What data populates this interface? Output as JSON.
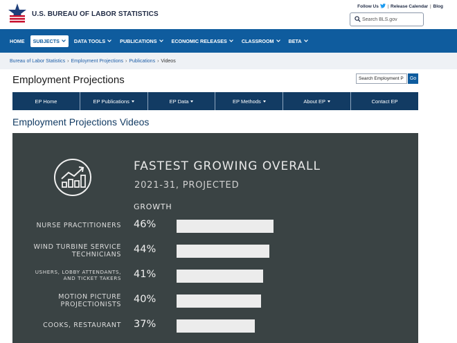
{
  "header": {
    "org_name": "U.S. BUREAU OF LABOR STATISTICS",
    "util_links": [
      "Follow Us",
      "Release Calendar",
      "Blog"
    ],
    "search_placeholder": "Search BLS.gov"
  },
  "nav": {
    "items": [
      {
        "label": "HOME",
        "active": false
      },
      {
        "label": "SUBJECTS",
        "active": true
      },
      {
        "label": "DATA TOOLS",
        "active": false
      },
      {
        "label": "PUBLICATIONS",
        "active": false
      },
      {
        "label": "ECONOMIC RELEASES",
        "active": false
      },
      {
        "label": "CLASSROOM",
        "active": false
      },
      {
        "label": "BETA",
        "active": false
      }
    ]
  },
  "breadcrumb": {
    "items": [
      "Bureau of Labor Statistics",
      "Employment Projections",
      "Publications"
    ],
    "current": "Videos"
  },
  "page": {
    "title": "Employment Projections",
    "search_value": "Search Employment P",
    "go_label": "Go",
    "section_heading": "Employment Projections Videos"
  },
  "ep_nav": {
    "tabs": [
      {
        "label": "EP Home",
        "dropdown": false
      },
      {
        "label": "EP Publications",
        "dropdown": true
      },
      {
        "label": "EP Data",
        "dropdown": true
      },
      {
        "label": "EP Methods",
        "dropdown": true
      },
      {
        "label": "About EP",
        "dropdown": true
      },
      {
        "label": "Contact EP",
        "dropdown": false
      }
    ]
  },
  "video": {
    "title": "FASTEST GROWING OVERALL",
    "subtitle": "2021-31, PROJECTED",
    "growth_label": "GROWTH",
    "rows": [
      {
        "lines": [
          "NURSE PRACTITIONERS"
        ],
        "pct": "46%",
        "value": 46,
        "size": "big"
      },
      {
        "lines": [
          "WIND TURBINE SERVICE",
          "TECHNICIANS"
        ],
        "pct": "44%",
        "value": 44,
        "size": "big"
      },
      {
        "lines": [
          "USHERS, LOBBY ATTENDANTS,",
          "AND TICKET TAKERS"
        ],
        "pct": "41%",
        "value": 41,
        "size": "small"
      },
      {
        "lines": [
          "MOTION PICTURE",
          "PROJECTIONISTS"
        ],
        "pct": "40%",
        "value": 40,
        "size": "big"
      },
      {
        "lines": [
          "COOKS, RESTAURANT"
        ],
        "pct": "37%",
        "value": 37,
        "size": "big"
      }
    ],
    "colors": {
      "background": "#3a4344",
      "bar": "#ececec"
    }
  },
  "colors": {
    "nav_blue": "#0f5c9e",
    "ep_nav": "#123b63",
    "breadcrumb_bg": "#eef1f5"
  }
}
